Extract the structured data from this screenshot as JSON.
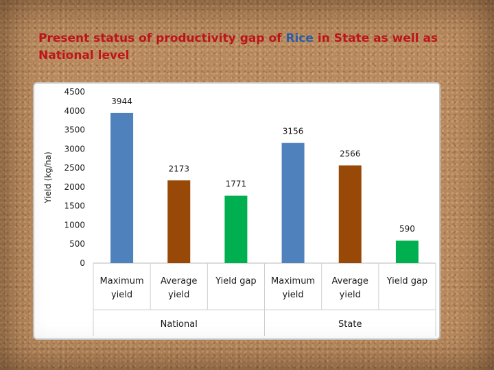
{
  "slide": {
    "title_before": "Present status of productivity gap of ",
    "title_highlight": "Rice",
    "title_after": " in State as well as National level",
    "title_color": "#c0151a",
    "highlight_color": "#2c5fa8"
  },
  "chart_data": {
    "type": "bar",
    "ylabel": "Yield (kg/ha)",
    "ylim": [
      0,
      4500
    ],
    "yticks": [
      0,
      500,
      1000,
      1500,
      2000,
      2500,
      3000,
      3500,
      4000,
      4500
    ],
    "grid": false,
    "legend": "none",
    "groups": [
      {
        "name": "National",
        "categories": [
          "Maximum yield",
          "Average yield",
          "Yield gap"
        ],
        "values": [
          3944,
          2173,
          1771
        ]
      },
      {
        "name": "State",
        "categories": [
          "Maximum yield",
          "Average yield",
          "Yield gap"
        ],
        "values": [
          3156,
          2566,
          590
        ]
      }
    ],
    "colors": [
      "#4f81bd",
      "#984807",
      "#00b050"
    ],
    "data_labels": true
  }
}
